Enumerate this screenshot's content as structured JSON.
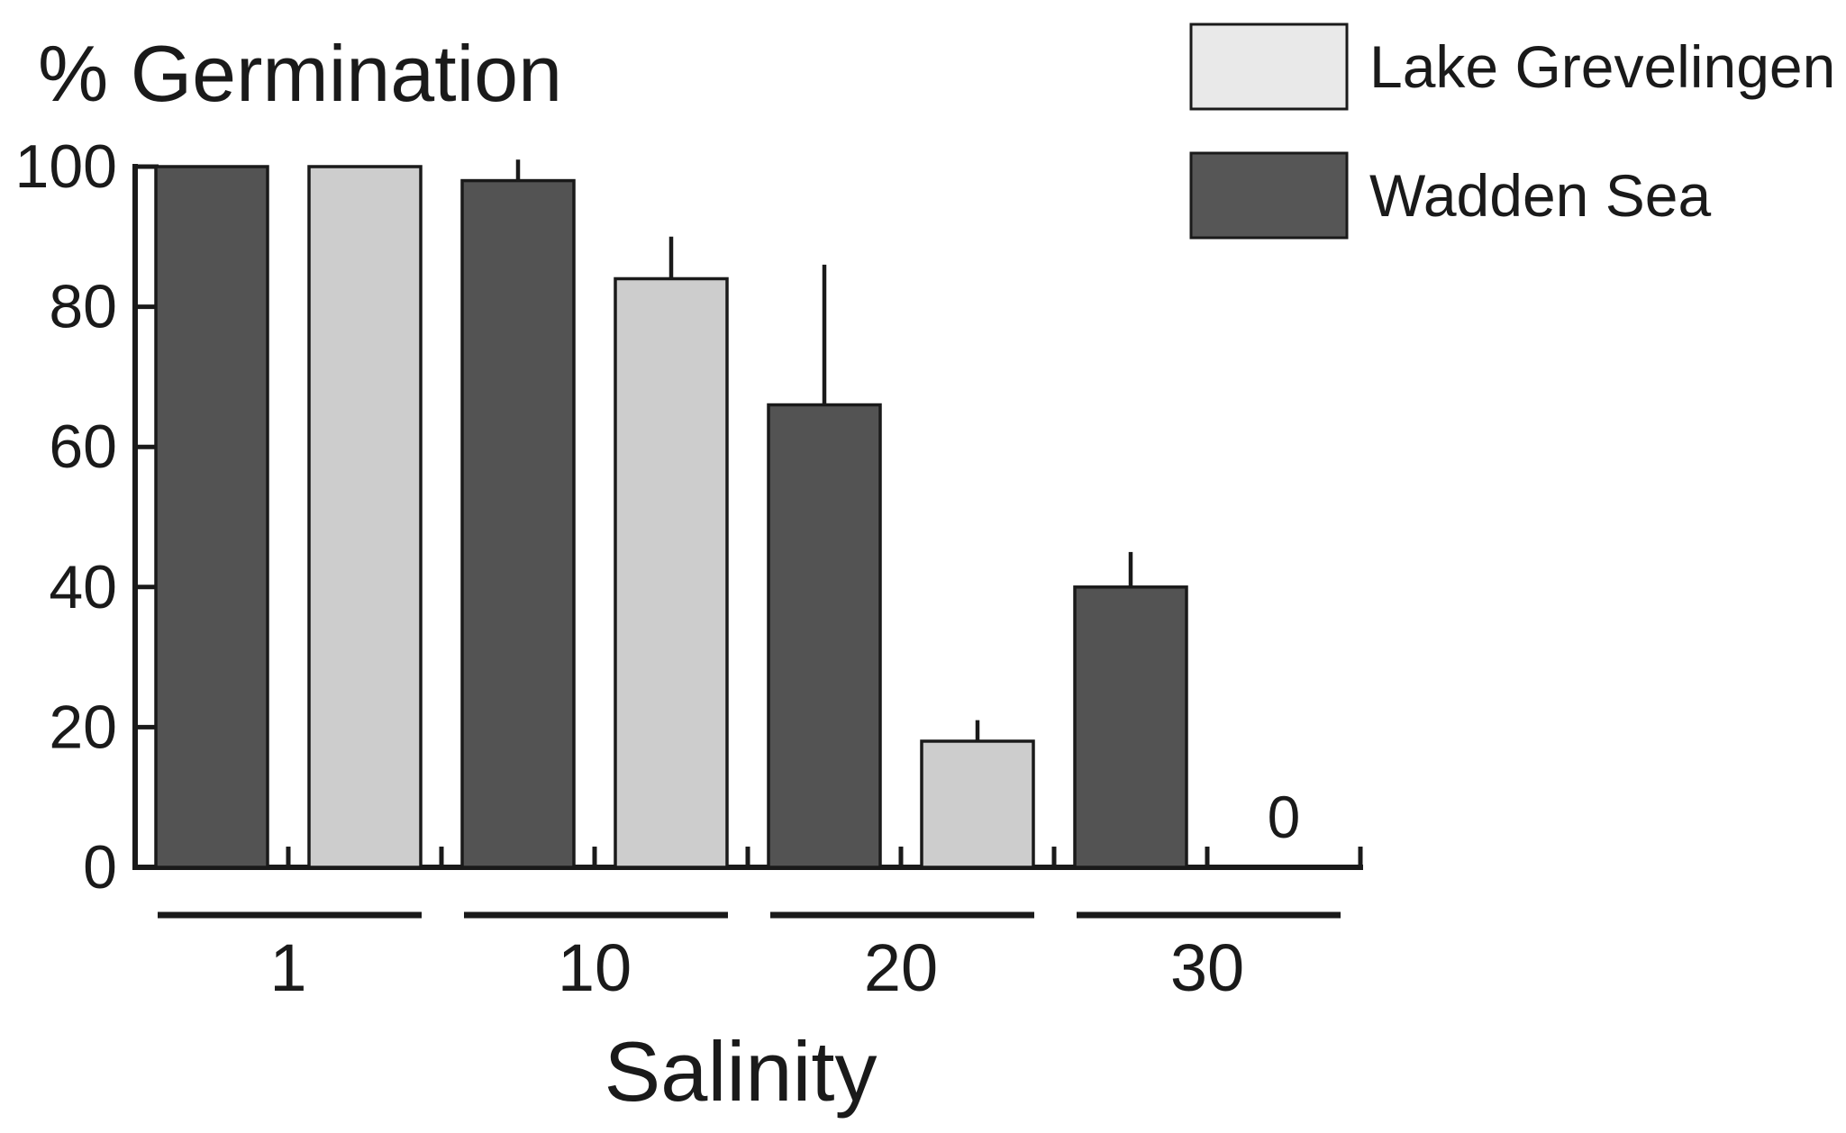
{
  "title": {
    "text": "% Germination"
  },
  "x_axis": {
    "label": "Salinity"
  },
  "legend": {
    "items": [
      {
        "label": "Lake Grevelingen",
        "swatch_color": "#e9e9e9"
      },
      {
        "label": "Wadden Sea",
        "swatch_color": "#565656"
      }
    ]
  },
  "annotations": {
    "zero_label": "0"
  },
  "chart_data": {
    "type": "bar",
    "title": "% Germination",
    "xlabel": "Salinity",
    "ylabel": "% Germination",
    "ylim": [
      0,
      100
    ],
    "yticks": [
      0,
      20,
      40,
      60,
      80,
      100
    ],
    "categories": [
      "1",
      "10",
      "20",
      "30"
    ],
    "series": [
      {
        "name": "Wadden Sea",
        "color": "#535353",
        "values": [
          100,
          98,
          66,
          40
        ],
        "error_plus": [
          0,
          3,
          20,
          5
        ]
      },
      {
        "name": "Lake Grevelingen",
        "color": "#cdcdcd",
        "values": [
          100,
          84,
          18,
          0
        ],
        "error_plus": [
          0,
          6,
          3,
          0
        ]
      }
    ],
    "grid": false,
    "legend_position": "top-right",
    "notes": "Within each salinity group the dark Wadden Sea bar is drawn left of the light Lake Grevelingen bar; Lake Grevelingen at salinity 30 is 0 and is shown as the text label 0 instead of a bar. Error bars extend upward only, no caps."
  }
}
